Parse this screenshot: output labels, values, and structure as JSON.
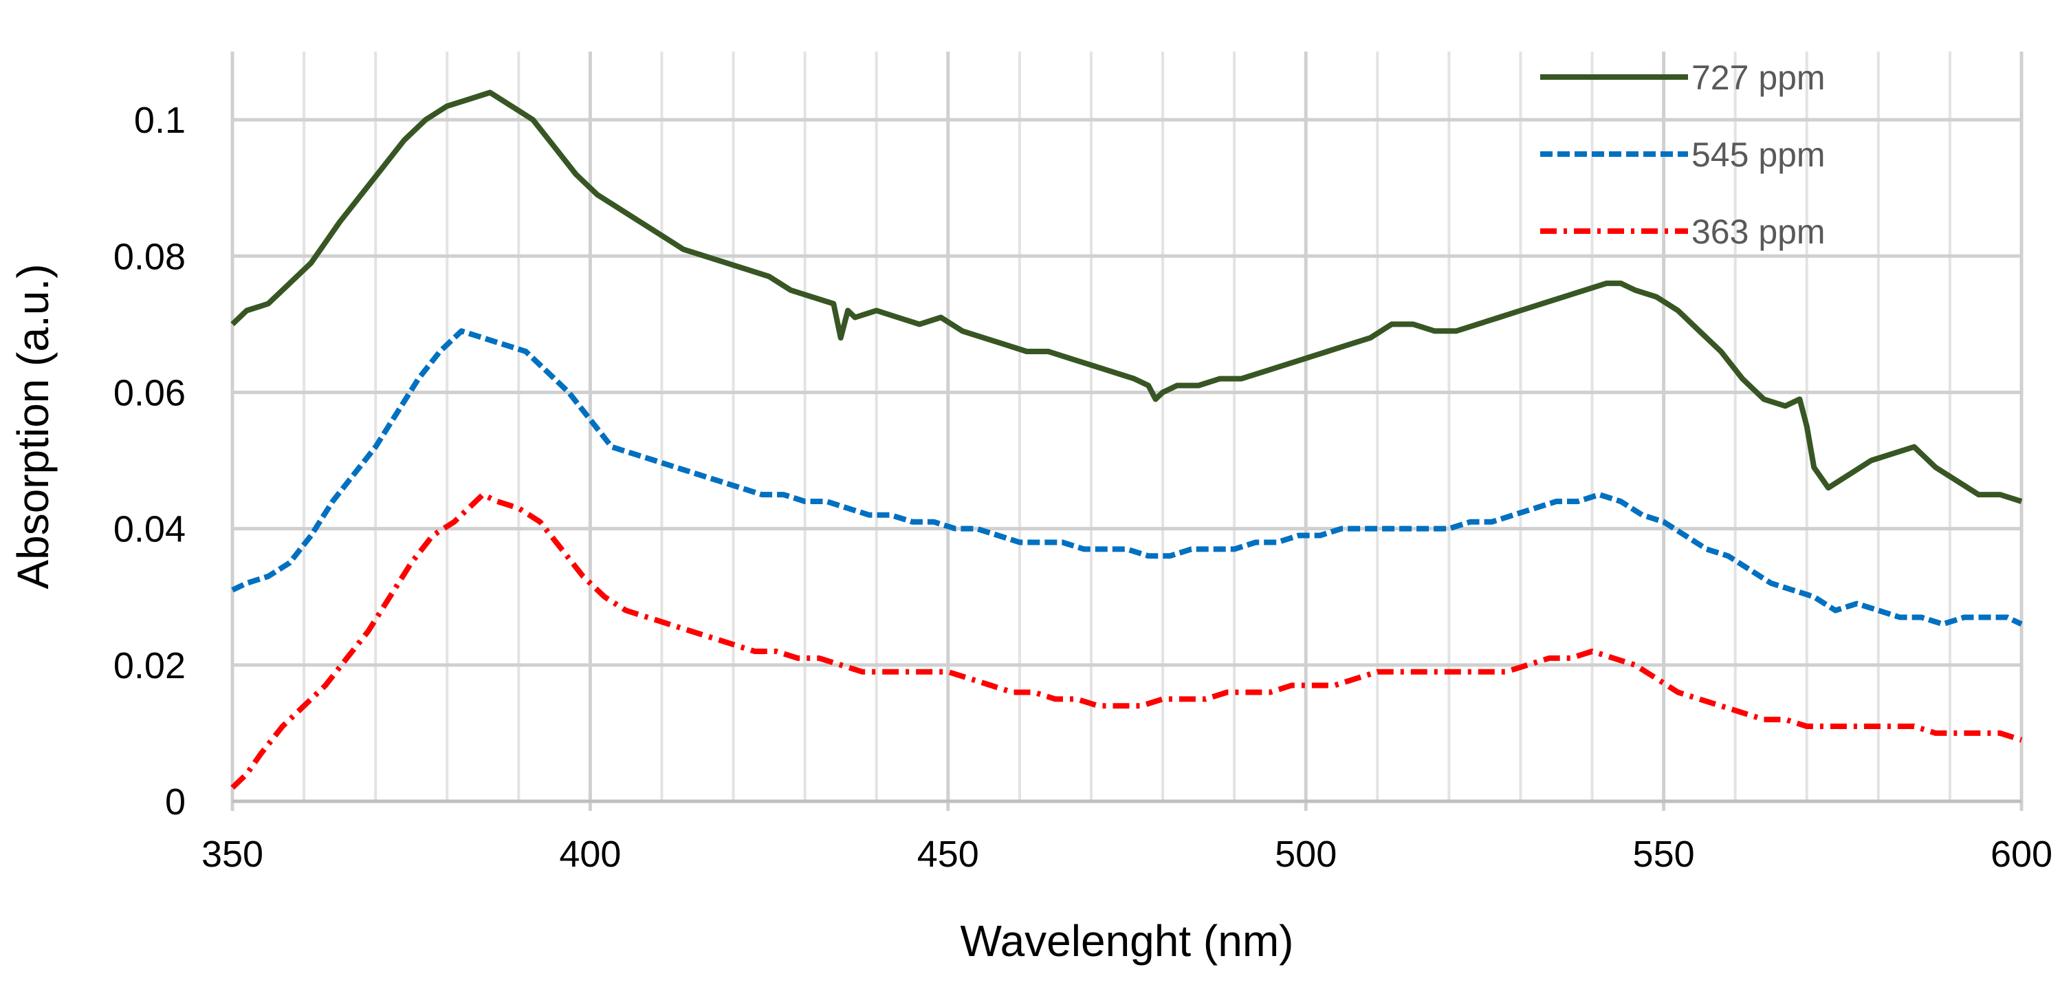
{
  "chart_data": {
    "type": "line",
    "title": "",
    "xlabel": "Wavelenght (nm)",
    "ylabel": "Absorption (a.u.)",
    "xlim": [
      350,
      600
    ],
    "ylim": [
      0,
      0.11
    ],
    "x_ticks": [
      350,
      400,
      450,
      500,
      550,
      600
    ],
    "x_tick_labels": [
      "350",
      "400",
      "450",
      "500",
      "550",
      "600"
    ],
    "y_ticks": [
      0,
      0.02,
      0.04,
      0.06,
      0.08,
      0.1
    ],
    "y_tick_labels": [
      "0",
      "0.02",
      "0.04",
      "0.06",
      "0.08",
      "0.1"
    ],
    "minor_x_step": 10,
    "grid": true,
    "legend_position": "top-right",
    "series": [
      {
        "name": "727 ppm",
        "color": "#375623",
        "dash": "solid",
        "x": [
          350,
          352,
          355,
          358,
          361,
          363,
          365,
          368,
          371,
          374,
          377,
          380,
          383,
          386,
          389,
          392,
          395,
          398,
          401,
          404,
          407,
          410,
          413,
          416,
          419,
          422,
          425,
          428,
          431,
          434,
          435,
          436,
          437,
          440,
          443,
          446,
          449,
          452,
          455,
          458,
          461,
          464,
          467,
          470,
          473,
          476,
          478,
          479,
          480,
          482,
          485,
          488,
          491,
          494,
          497,
          500,
          503,
          506,
          509,
          512,
          515,
          518,
          521,
          524,
          527,
          530,
          533,
          536,
          539,
          542,
          544,
          546,
          549,
          552,
          555,
          558,
          561,
          564,
          567,
          569,
          570,
          571,
          573,
          576,
          579,
          582,
          585,
          588,
          591,
          594,
          597,
          600
        ],
        "y": [
          0.07,
          0.072,
          0.073,
          0.076,
          0.079,
          0.082,
          0.085,
          0.089,
          0.093,
          0.097,
          0.1,
          0.102,
          0.103,
          0.104,
          0.102,
          0.1,
          0.096,
          0.092,
          0.089,
          0.087,
          0.085,
          0.083,
          0.081,
          0.08,
          0.079,
          0.078,
          0.077,
          0.075,
          0.074,
          0.073,
          0.068,
          0.072,
          0.071,
          0.072,
          0.071,
          0.07,
          0.071,
          0.069,
          0.068,
          0.067,
          0.066,
          0.066,
          0.065,
          0.064,
          0.063,
          0.062,
          0.061,
          0.059,
          0.06,
          0.061,
          0.061,
          0.062,
          0.062,
          0.063,
          0.064,
          0.065,
          0.066,
          0.067,
          0.068,
          0.07,
          0.07,
          0.069,
          0.069,
          0.07,
          0.071,
          0.072,
          0.073,
          0.074,
          0.075,
          0.076,
          0.076,
          0.075,
          0.074,
          0.072,
          0.069,
          0.066,
          0.062,
          0.059,
          0.058,
          0.059,
          0.055,
          0.049,
          0.046,
          0.048,
          0.05,
          0.051,
          0.052,
          0.049,
          0.047,
          0.045,
          0.045,
          0.044
        ]
      },
      {
        "name": "545 ppm",
        "color": "#0070C0",
        "dash": "dashed",
        "x": [
          350,
          352,
          355,
          358,
          361,
          364,
          367,
          370,
          373,
          376,
          379,
          382,
          385,
          388,
          391,
          394,
          397,
          400,
          403,
          406,
          409,
          412,
          415,
          418,
          421,
          424,
          427,
          430,
          433,
          436,
          439,
          442,
          445,
          448,
          451,
          454,
          457,
          460,
          463,
          466,
          469,
          472,
          475,
          478,
          481,
          484,
          487,
          490,
          493,
          496,
          499,
          502,
          505,
          508,
          511,
          514,
          517,
          520,
          523,
          526,
          529,
          532,
          535,
          538,
          541,
          544,
          547,
          550,
          553,
          556,
          559,
          562,
          565,
          568,
          571,
          574,
          577,
          580,
          583,
          586,
          589,
          592,
          595,
          598,
          600
        ],
        "y": [
          0.031,
          0.032,
          0.033,
          0.035,
          0.039,
          0.044,
          0.048,
          0.052,
          0.057,
          0.062,
          0.066,
          0.069,
          0.068,
          0.067,
          0.066,
          0.063,
          0.06,
          0.056,
          0.052,
          0.051,
          0.05,
          0.049,
          0.048,
          0.047,
          0.046,
          0.045,
          0.045,
          0.044,
          0.044,
          0.043,
          0.042,
          0.042,
          0.041,
          0.041,
          0.04,
          0.04,
          0.039,
          0.038,
          0.038,
          0.038,
          0.037,
          0.037,
          0.037,
          0.036,
          0.036,
          0.037,
          0.037,
          0.037,
          0.038,
          0.038,
          0.039,
          0.039,
          0.04,
          0.04,
          0.04,
          0.04,
          0.04,
          0.04,
          0.041,
          0.041,
          0.042,
          0.043,
          0.044,
          0.044,
          0.045,
          0.044,
          0.042,
          0.041,
          0.039,
          0.037,
          0.036,
          0.034,
          0.032,
          0.031,
          0.03,
          0.028,
          0.029,
          0.028,
          0.027,
          0.027,
          0.026,
          0.027,
          0.027,
          0.027,
          0.026
        ]
      },
      {
        "name": "363 ppm",
        "color": "#FF0000",
        "dash": "dash-dot",
        "x": [
          350,
          352,
          354,
          357,
          360,
          363,
          366,
          369,
          372,
          375,
          378,
          381,
          383,
          385,
          387,
          390,
          393,
          396,
          399,
          402,
          405,
          408,
          411,
          414,
          417,
          420,
          423,
          426,
          429,
          432,
          435,
          438,
          441,
          444,
          447,
          450,
          453,
          456,
          459,
          462,
          465,
          468,
          471,
          474,
          477,
          480,
          483,
          486,
          489,
          492,
          495,
          498,
          501,
          504,
          507,
          510,
          513,
          516,
          519,
          522,
          525,
          528,
          531,
          534,
          537,
          540,
          543,
          546,
          549,
          552,
          555,
          558,
          561,
          564,
          567,
          570,
          573,
          576,
          579,
          582,
          585,
          588,
          591,
          594,
          597,
          600
        ],
        "y": [
          0.002,
          0.004,
          0.007,
          0.011,
          0.014,
          0.017,
          0.021,
          0.025,
          0.03,
          0.035,
          0.039,
          0.041,
          0.043,
          0.045,
          0.044,
          0.043,
          0.041,
          0.037,
          0.033,
          0.03,
          0.028,
          0.027,
          0.026,
          0.025,
          0.024,
          0.023,
          0.022,
          0.022,
          0.021,
          0.021,
          0.02,
          0.019,
          0.019,
          0.019,
          0.019,
          0.019,
          0.018,
          0.017,
          0.016,
          0.016,
          0.015,
          0.015,
          0.014,
          0.014,
          0.014,
          0.015,
          0.015,
          0.015,
          0.016,
          0.016,
          0.016,
          0.017,
          0.017,
          0.017,
          0.018,
          0.019,
          0.019,
          0.019,
          0.019,
          0.019,
          0.019,
          0.019,
          0.02,
          0.021,
          0.021,
          0.022,
          0.021,
          0.02,
          0.018,
          0.016,
          0.015,
          0.014,
          0.013,
          0.012,
          0.012,
          0.011,
          0.011,
          0.011,
          0.011,
          0.011,
          0.011,
          0.01,
          0.01,
          0.01,
          0.01,
          0.009
        ]
      }
    ]
  }
}
